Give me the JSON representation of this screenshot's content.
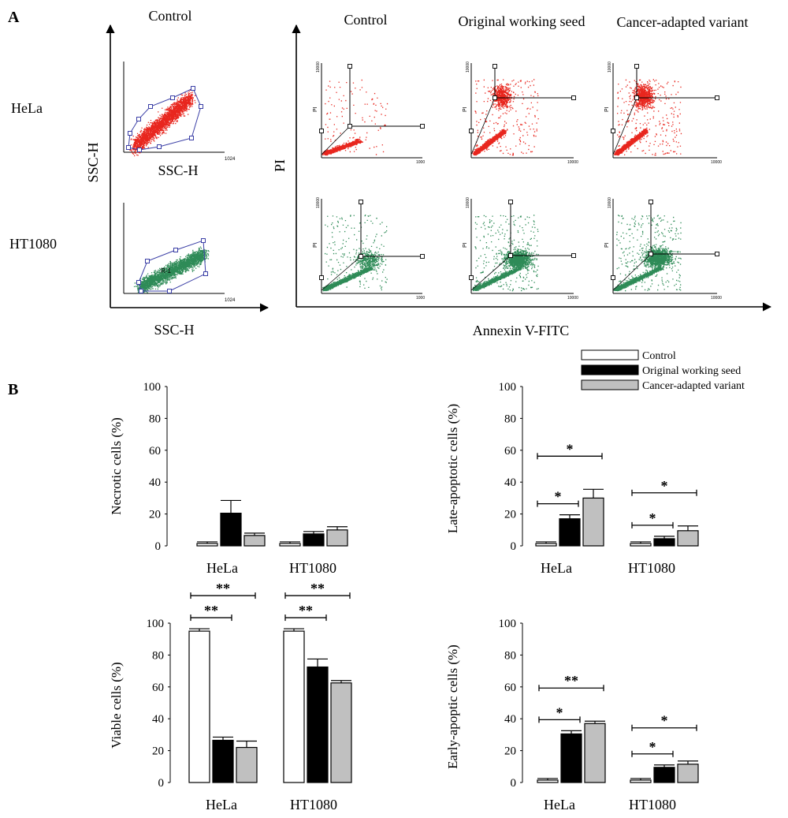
{
  "panel_a": {
    "letter": "A",
    "gate_col_title": "Control",
    "col_titles": [
      "Control",
      "Original working seed",
      "Cancer-adapted variant"
    ],
    "row_labels": [
      "HeLa",
      "HT1080"
    ],
    "gate_axis_ylabel": "SSC-H",
    "gate_axis_xlabel_inner": "SSC-H",
    "gate_axis_xlabel": "SSC-H",
    "annexin_ylabel": "PI",
    "annexin_xlabel": "Annexin V-FITC",
    "mini_pi": "PI",
    "gate_tick": "1024",
    "gate_label": "R-1",
    "x_ticks": [
      "1000",
      "10000",
      "10000"
    ],
    "y_ticks": "10000",
    "colors": {
      "hela": "#e8261e",
      "ht1080": "#2e8b57",
      "gate": "#3b3fa6"
    }
  },
  "panel_b": {
    "letter": "B",
    "legend": [
      "Control",
      "Original working seed",
      "Cancer-adapted variant"
    ],
    "colors": {
      "control": "#ffffff",
      "original": "#000000",
      "variant": "#c0c0c0"
    }
  },
  "chart_data": [
    {
      "type": "bar",
      "ylabel": "Necrotic cells (%)",
      "ylim": [
        0,
        100
      ],
      "yticks": [
        "0",
        "20",
        "40",
        "60",
        "80",
        "100"
      ],
      "categories": [
        "HeLa",
        "HT1080"
      ],
      "series": [
        {
          "name": "Control",
          "values": [
            1.5,
            1.5
          ],
          "errors": [
            1,
            1
          ]
        },
        {
          "name": "Original working seed",
          "values": [
            20.5,
            7.5
          ],
          "errors": [
            8,
            1.5
          ]
        },
        {
          "name": "Cancer-adapted variant",
          "values": [
            6.5,
            10
          ],
          "errors": [
            1.5,
            2
          ]
        }
      ],
      "significance": []
    },
    {
      "type": "bar",
      "ylabel": "Late-apoptotic cells (%)",
      "ylim": [
        0,
        100
      ],
      "yticks": [
        "0",
        "20",
        "40",
        "60",
        "80",
        "100"
      ],
      "categories": [
        "HeLa",
        "HT1080"
      ],
      "series": [
        {
          "name": "Control",
          "values": [
            1.5,
            1.5
          ],
          "errors": [
            1,
            1
          ]
        },
        {
          "name": "Original working seed",
          "values": [
            17,
            4.5
          ],
          "errors": [
            2.5,
            1.5
          ]
        },
        {
          "name": "Cancer-adapted variant",
          "values": [
            30,
            9.5
          ],
          "errors": [
            5.5,
            3
          ]
        }
      ],
      "significance": [
        {
          "group": 0,
          "from": 0,
          "to": 1,
          "label": "*"
        },
        {
          "group": 0,
          "from": 0,
          "to": 2,
          "label": "*"
        },
        {
          "group": 1,
          "from": 0,
          "to": 1,
          "label": "*"
        },
        {
          "group": 1,
          "from": 0,
          "to": 2,
          "label": "*"
        }
      ]
    },
    {
      "type": "bar",
      "ylabel": "Viable cells (%)",
      "ylim": [
        0,
        100
      ],
      "yticks": [
        "0",
        "20",
        "40",
        "60",
        "80",
        "100"
      ],
      "categories": [
        "HeLa",
        "HT1080"
      ],
      "series": [
        {
          "name": "Control",
          "values": [
            95,
            95
          ],
          "errors": [
            1.5,
            1.5
          ]
        },
        {
          "name": "Original working seed",
          "values": [
            26.5,
            72.5
          ],
          "errors": [
            2,
            5
          ]
        },
        {
          "name": "Cancer-adapted variant",
          "values": [
            22,
            62.5
          ],
          "errors": [
            4,
            1.5
          ]
        }
      ],
      "significance": [
        {
          "group": 0,
          "from": 0,
          "to": 1,
          "label": "**"
        },
        {
          "group": 0,
          "from": 0,
          "to": 2,
          "label": "**"
        },
        {
          "group": 1,
          "from": 0,
          "to": 1,
          "label": "**"
        },
        {
          "group": 1,
          "from": 0,
          "to": 2,
          "label": "**"
        }
      ]
    },
    {
      "type": "bar",
      "ylabel": "Early-apoptic cells (%)",
      "ylim": [
        0,
        100
      ],
      "yticks": [
        "0",
        "20",
        "40",
        "60",
        "80",
        "100"
      ],
      "categories": [
        "HeLa",
        "HT1080"
      ],
      "series": [
        {
          "name": "Control",
          "values": [
            1.5,
            1.5
          ],
          "errors": [
            1,
            1
          ]
        },
        {
          "name": "Original working seed",
          "values": [
            30.5,
            9.5
          ],
          "errors": [
            2,
            1.5
          ]
        },
        {
          "name": "Cancer-adapted variant",
          "values": [
            37,
            11.5
          ],
          "errors": [
            1.5,
            2
          ]
        }
      ],
      "significance": [
        {
          "group": 0,
          "from": 0,
          "to": 1,
          "label": "*"
        },
        {
          "group": 0,
          "from": 0,
          "to": 2,
          "label": "**"
        },
        {
          "group": 1,
          "from": 0,
          "to": 1,
          "label": "*"
        },
        {
          "group": 1,
          "from": 0,
          "to": 2,
          "label": "*"
        }
      ]
    }
  ]
}
